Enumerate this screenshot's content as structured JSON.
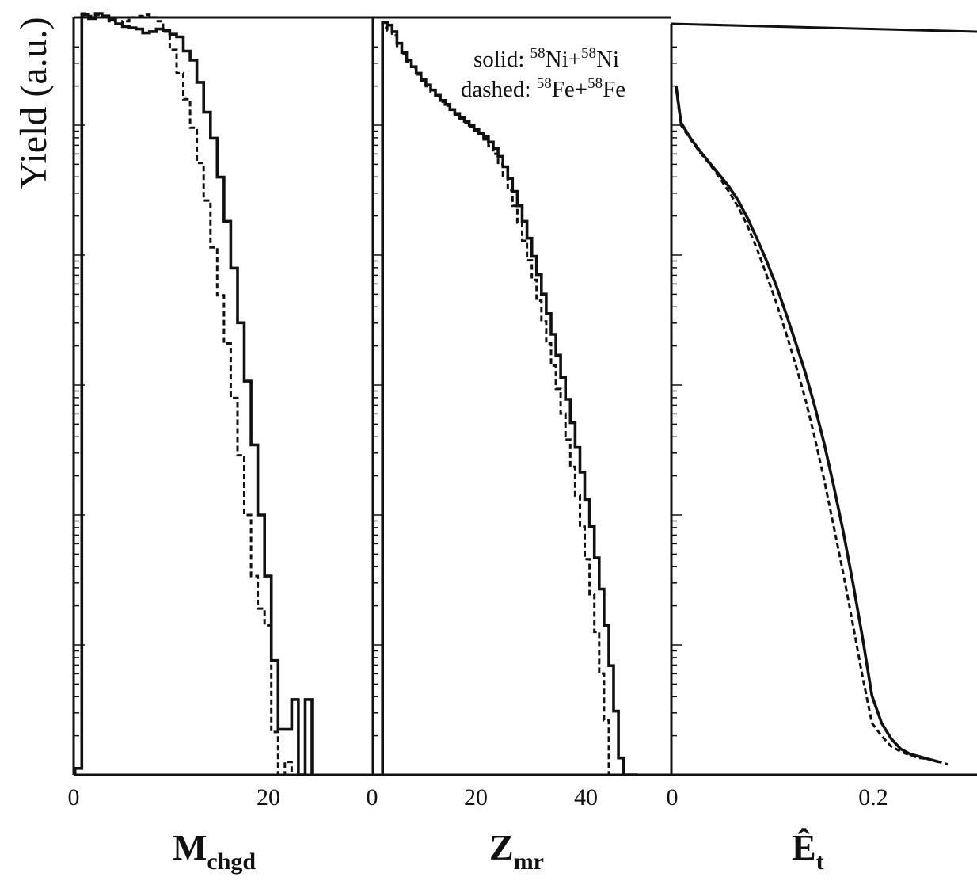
{
  "chart_data": [
    {
      "type": "line",
      "panel": "left",
      "xlabel": "M",
      "xlabel_sub": "chgd",
      "ylabel": "Yield (a.u.)",
      "xlim": [
        0,
        44.2
      ],
      "ylim_log10": [
        0,
        6
      ],
      "yscale": "log",
      "tick_labels": [
        "0",
        "20"
      ],
      "series": [
        {
          "name": "58Ni+58Ni",
          "style": "solid",
          "step_edges": [
            0.2,
            1.2,
            2.2,
            3.2,
            4.2,
            5.2,
            6.2,
            7.2,
            8.2,
            9.2,
            10.2,
            11.2,
            12.2,
            13.2,
            14.2,
            15.2,
            16.2,
            17.2,
            18.2,
            19.2,
            20.2,
            21.2,
            22.2,
            23.2,
            24.2,
            25.2,
            26.2,
            27.2,
            28.2,
            29.2,
            30.2,
            31.2,
            32.2,
            33.2,
            34.2,
            35.2
          ],
          "log10_values": [
            0.05,
            5.85,
            5.82,
            5.86,
            5.84,
            5.81,
            5.78,
            5.76,
            5.75,
            5.74,
            5.71,
            5.72,
            5.74,
            5.73,
            5.7,
            5.68,
            5.57,
            5.5,
            5.33,
            5.1,
            4.9,
            4.6,
            4.26,
            3.9,
            3.48,
            3.03,
            2.54,
            2.0,
            1.53,
            0.88,
            0.35,
            0.35,
            0.58,
            0.0,
            0.58
          ]
        },
        {
          "name": "58Fe+58Fe",
          "style": "dashed",
          "step_edges": [
            0.2,
            1.2,
            2.2,
            3.2,
            4.2,
            5.2,
            6.2,
            7.2,
            8.2,
            9.2,
            10.2,
            11.2,
            12.2,
            13.2,
            14.2,
            15.2,
            16.2,
            17.2,
            18.2,
            19.2,
            20.2,
            21.2,
            22.2,
            23.2,
            24.2,
            25.2,
            26.2,
            27.2,
            28.2,
            29.2,
            30.2,
            31.2,
            32.2,
            33.2,
            34.2
          ],
          "log10_values": [
            0.05,
            5.86,
            5.84,
            5.85,
            5.83,
            5.8,
            5.78,
            5.8,
            5.83,
            5.84,
            5.85,
            5.83,
            5.8,
            5.72,
            5.58,
            5.4,
            5.2,
            4.98,
            4.71,
            4.42,
            4.06,
            3.69,
            3.32,
            2.9,
            2.46,
            2.0,
            1.53,
            1.28,
            1.15,
            0.33,
            0.0,
            0.1,
            0.0,
            0.0
          ]
        }
      ]
    },
    {
      "type": "line",
      "panel": "middle",
      "xlabel": "Z",
      "xlabel_sub": "mr",
      "xlim": [
        0,
        62
      ],
      "ylim_log10": [
        0,
        6
      ],
      "yscale": "log",
      "tick_labels": [
        "0",
        "20",
        "40"
      ],
      "series": [
        {
          "name": "58Ni+58Ni",
          "style": "solid",
          "step_edges": [
            2,
            3,
            4,
            5,
            6,
            7,
            8,
            9,
            10,
            11,
            12,
            13,
            14,
            15,
            16,
            17,
            18,
            19,
            20,
            21,
            22,
            23,
            24,
            25,
            26,
            27,
            28,
            29,
            30,
            31,
            32,
            33,
            34,
            35,
            36,
            37,
            38,
            39,
            40,
            41,
            42,
            43,
            44,
            45,
            46,
            47,
            48,
            49,
            50,
            51,
            52,
            53,
            54,
            55
          ],
          "log10_values": [
            5.79,
            5.77,
            5.72,
            5.63,
            5.56,
            5.5,
            5.45,
            5.4,
            5.35,
            5.31,
            5.27,
            5.23,
            5.19,
            5.16,
            5.12,
            5.09,
            5.06,
            5.03,
            5.0,
            4.97,
            4.94,
            4.91,
            4.87,
            4.82,
            4.76,
            4.68,
            4.59,
            4.49,
            4.38,
            4.26,
            4.13,
            3.99,
            3.85,
            3.7,
            3.55,
            3.39,
            3.23,
            3.06,
            2.89,
            2.71,
            2.52,
            2.33,
            2.12,
            1.91,
            1.67,
            1.43,
            1.15,
            0.84,
            0.49,
            0.13,
            0.0,
            0.0,
            0.0
          ]
        },
        {
          "name": "58Fe+58Fe",
          "style": "dashed",
          "step_edges": [
            2,
            3,
            4,
            5,
            6,
            7,
            8,
            9,
            10,
            11,
            12,
            13,
            14,
            15,
            16,
            17,
            18,
            19,
            20,
            21,
            22,
            23,
            24,
            25,
            26,
            27,
            28,
            29,
            30,
            31,
            32,
            33,
            34,
            35,
            36,
            37,
            38,
            39,
            40,
            41,
            42,
            43,
            44,
            45,
            46,
            47,
            48,
            49,
            50,
            51,
            52,
            53,
            54
          ],
          "log10_values": [
            5.75,
            5.73,
            5.69,
            5.61,
            5.55,
            5.49,
            5.44,
            5.39,
            5.34,
            5.3,
            5.26,
            5.22,
            5.18,
            5.15,
            5.12,
            5.08,
            5.05,
            5.02,
            4.99,
            4.96,
            4.93,
            4.89,
            4.84,
            4.78,
            4.7,
            4.61,
            4.5,
            4.38,
            4.25,
            4.11,
            3.96,
            3.81,
            3.65,
            3.49,
            3.32,
            3.15,
            2.97,
            2.78,
            2.58,
            2.37,
            2.15,
            1.91,
            1.66,
            1.39,
            1.1,
            0.78,
            0.42,
            0.0,
            0.0,
            0.0,
            0.0,
            0.0
          ]
        }
      ]
    },
    {
      "type": "line",
      "panel": "right",
      "xlabel": "Ê",
      "xlabel_sub": "t",
      "xlim": [
        0,
        0.32
      ],
      "ylim_log10": [
        0,
        6
      ],
      "yscale": "log",
      "tick_labels": [
        "0",
        "0.2"
      ],
      "series": [
        {
          "name": "58Ni+58Ni",
          "style": "solid",
          "x": [
            0.005,
            0.01,
            0.02,
            0.03,
            0.04,
            0.05,
            0.06,
            0.07,
            0.08,
            0.09,
            0.1,
            0.11,
            0.12,
            0.13,
            0.14,
            0.15,
            0.16,
            0.17,
            0.18,
            0.19,
            0.2,
            0.21,
            0.22,
            0.23,
            0.24,
            0.25,
            0.26,
            0.27,
            0.28
          ],
          "log10_values": [
            5.3,
            5.02,
            4.9,
            4.8,
            4.71,
            4.62,
            4.53,
            4.42,
            4.28,
            4.12,
            3.95,
            3.76,
            3.55,
            3.33,
            3.1,
            2.84,
            2.55,
            2.22,
            1.87,
            1.48,
            1.06,
            0.61,
            0.4,
            0.28,
            0.2,
            0.16,
            0.14,
            0.12,
            0.1
          ]
        },
        {
          "name": "58Fe+58Fe",
          "style": "dashed",
          "x": [
            0.005,
            0.01,
            0.02,
            0.03,
            0.04,
            0.05,
            0.06,
            0.07,
            0.08,
            0.09,
            0.1,
            0.11,
            0.12,
            0.13,
            0.14,
            0.15,
            0.16,
            0.17,
            0.18,
            0.19,
            0.2,
            0.21,
            0.22,
            0.23,
            0.24,
            0.25,
            0.26,
            0.27,
            0.28,
            0.29
          ],
          "log10_values": [
            5.28,
            5.0,
            4.89,
            4.79,
            4.7,
            4.6,
            4.49,
            4.37,
            4.22,
            4.04,
            3.84,
            3.63,
            3.4,
            3.16,
            2.9,
            2.6,
            2.27,
            1.91,
            1.55,
            1.16,
            0.76,
            0.4,
            0.3,
            0.22,
            0.18,
            0.15,
            0.13,
            0.12,
            0.1,
            0.08
          ]
        }
      ]
    }
  ],
  "legend": {
    "solid_prefix": "solid: ",
    "solid_a_mass": "58",
    "solid_a_sym": "Ni+",
    "solid_b_mass": "58",
    "solid_b_sym": "Ni",
    "dashed_prefix": "dashed: ",
    "dashed_a_mass": "58",
    "dashed_a_sym": "Fe+",
    "dashed_b_mass": "58",
    "dashed_b_sym": "Fe"
  },
  "labels": {
    "ylabel": "Yield (a.u.)",
    "p1_x0": "0",
    "p1_x20": "20",
    "p2_x0": "0",
    "p2_x20": "20",
    "p2_x40": "40",
    "p3_x0": "0",
    "p3_x02": "0.2",
    "p1_xlabel_main": "M",
    "p1_xlabel_sub": "chgd",
    "p2_xlabel_main": "Z",
    "p2_xlabel_sub": "mr",
    "p3_xlabel_main": "Ê",
    "p3_xlabel_sub": "t"
  }
}
